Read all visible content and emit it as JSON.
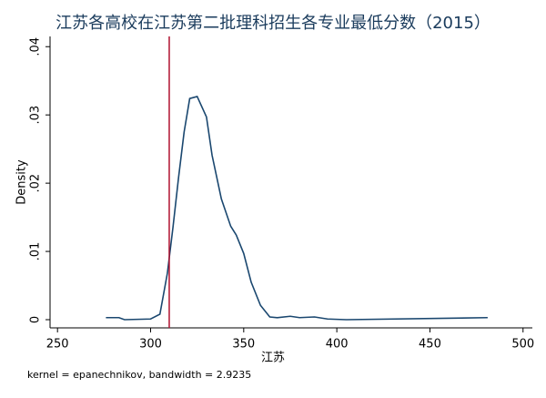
{
  "chart_data": {
    "type": "line",
    "title": "江苏各高校在江苏第二批理科招生各专业最低分数（2015）",
    "xlabel": "江苏",
    "ylabel": "Density",
    "note": "kernel = epanechnikov, bandwidth = 2.9235",
    "x": [
      276,
      283,
      286,
      300,
      305,
      309,
      312,
      315,
      318,
      321,
      325,
      330,
      333,
      338,
      343,
      346,
      350,
      354,
      359,
      364,
      368,
      375,
      380,
      388,
      395,
      405,
      481
    ],
    "values": [
      0.0003,
      0.0003,
      0,
      0.0001,
      0.0008,
      0.0068,
      0.0135,
      0.0208,
      0.0275,
      0.0324,
      0.0327,
      0.0297,
      0.0241,
      0.0177,
      0.0137,
      0.0124,
      0.0097,
      0.0055,
      0.0021,
      0.0004,
      0.0003,
      0.0005,
      0.0003,
      0.0004,
      0.0001,
      0,
      0.0003
    ],
    "color": "#1a476f",
    "xline": {
      "value": 310,
      "color": "#b0102f"
    },
    "xlim": [
      246,
      505
    ],
    "ylim": [
      -0.0012,
      0.0415
    ],
    "xticks": [
      250,
      300,
      350,
      400,
      450,
      500
    ],
    "yticks": [
      0,
      {
        "value": 0.01,
        "label": ".01"
      },
      {
        "value": 0.02,
        "label": ".02"
      },
      {
        "value": 0.03,
        "label": ".03"
      },
      {
        "value": 0.04,
        "label": ".04"
      }
    ]
  }
}
